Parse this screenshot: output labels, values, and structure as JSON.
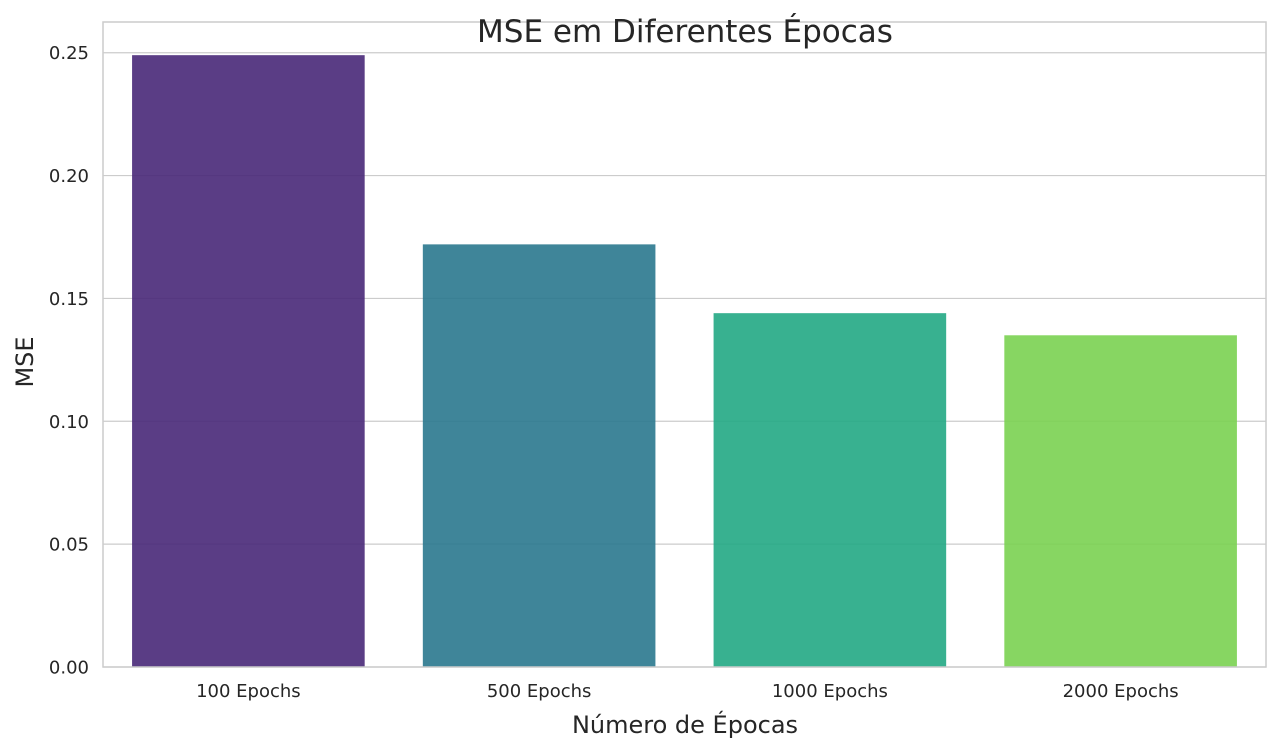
{
  "chart_data": {
    "type": "bar",
    "title": "MSE em Diferentes Épocas",
    "xlabel": "Número de Épocas",
    "ylabel": "MSE",
    "categories": [
      "100 Epochs",
      "500 Epochs",
      "1000 Epochs",
      "2000 Epochs"
    ],
    "values": [
      0.249,
      0.172,
      0.144,
      0.135
    ],
    "colors": [
      "#482878",
      "#2a788e",
      "#22a884",
      "#7ad151"
    ],
    "bar_opacity": 0.9,
    "ylim": [
      0,
      0.2625
    ],
    "yticks": [
      0.0,
      0.05,
      0.1,
      0.15,
      0.2,
      0.25
    ],
    "ytick_labels": [
      "0.00",
      "0.05",
      "0.10",
      "0.15",
      "0.20",
      "0.25"
    ],
    "grid": "horizontal",
    "gridline_color": "#cccccc",
    "spine_color": "#cccccc"
  }
}
